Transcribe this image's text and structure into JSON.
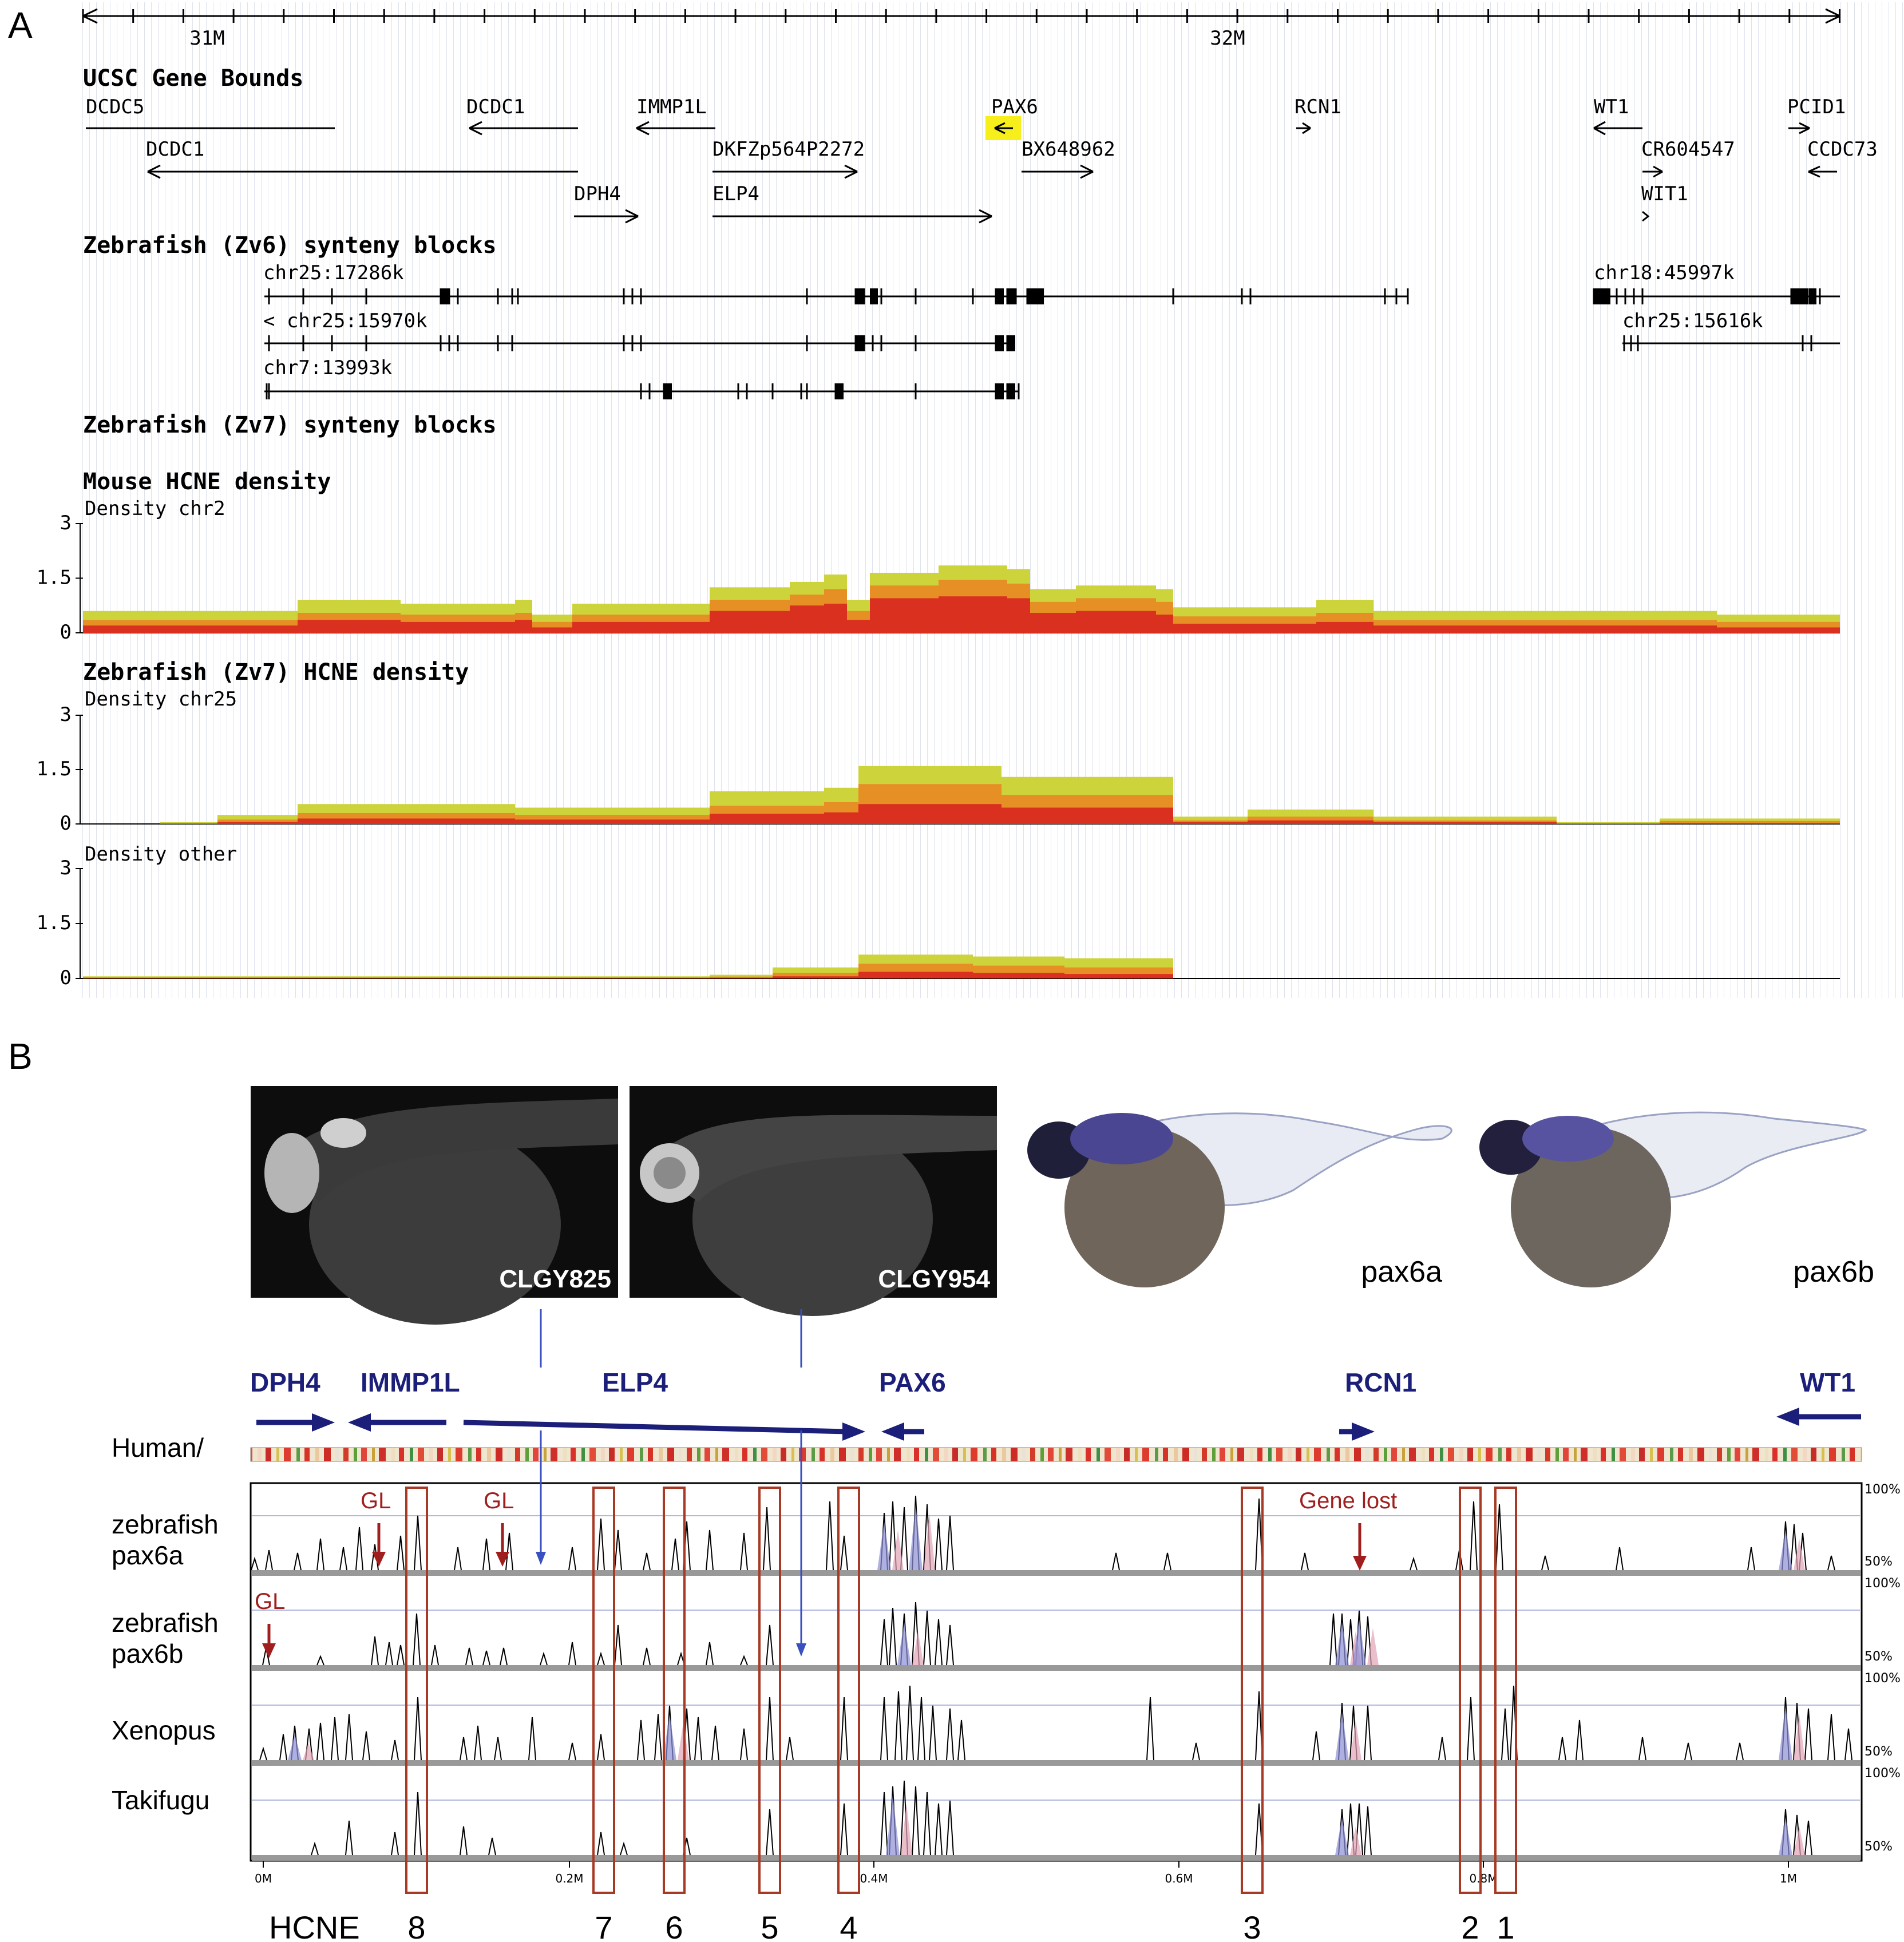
{
  "panel_a": {
    "label": "A",
    "ruler": {
      "ticks": [
        "31M",
        "32M"
      ]
    },
    "gene_track": {
      "title": "UCSC Gene Bounds",
      "genes": [
        "DCDC5",
        "DCDC1",
        "DCDC1",
        "IMMP1L",
        "DKFZp564P2272",
        "DPH4",
        "ELP4",
        "PAX6",
        "BX648962",
        "RCN1",
        "WT1",
        "CR604547",
        "WIT1",
        "PCID1",
        "CCDC73"
      ]
    },
    "synteny_zv6": {
      "title": "Zebrafish (Zv6) synteny blocks",
      "blocks": [
        "chr25:17286k",
        "< chr25:15970k",
        "chr7:13993k",
        "chr18:45997k",
        "chr25:15616k"
      ]
    },
    "synteny_zv7": {
      "title": "Zebrafish (Zv7) synteny blocks"
    },
    "density_tracks": [
      {
        "title": "Mouse HCNE density",
        "sublabel": "Density chr2",
        "yticks": [
          "3",
          "1.5",
          "0"
        ]
      },
      {
        "title": "Zebrafish (Zv7) HCNE density",
        "sublabel": "Density chr25",
        "yticks": [
          "3",
          "1.5",
          "0"
        ]
      },
      {
        "title": "",
        "sublabel": "Density other",
        "yticks": [
          "3",
          "1.5",
          "0"
        ]
      }
    ],
    "colors": {
      "yellow": "#cdd33a",
      "orange": "#e58f25",
      "red": "#d9301f",
      "highlight": "#f6ef1b"
    }
  },
  "panel_b": {
    "label": "B",
    "photos": [
      {
        "caption": "CLGY825"
      },
      {
        "caption": "CLGY954"
      },
      {
        "caption": "pax6a"
      },
      {
        "caption": "pax6b"
      }
    ],
    "genes": [
      "DPH4",
      "IMMP1L",
      "ELP4",
      "PAX6",
      "RCN1",
      "WT1"
    ],
    "human_label": "Human/",
    "rows": [
      "zebrafish pax6a",
      "zebrafish pax6b",
      "Xenopus",
      "Takifugu"
    ],
    "row_lines": [
      [
        "zebrafish",
        "pax6a"
      ],
      [
        "zebrafish",
        "pax6b"
      ],
      [
        "Xenopus"
      ],
      [
        "Takifugu"
      ]
    ],
    "pct_labels": [
      "100%",
      "50%"
    ],
    "gl_label": "GL",
    "gene_lost_label": "Gene lost",
    "xaxis_ticks": [
      "0M",
      "0.2M",
      "0.4M",
      "0.6M",
      "0.8M",
      "1M"
    ],
    "hcne_label": "HCNE",
    "hcne_numbers": [
      "8",
      "7",
      "6",
      "5",
      "4",
      "3",
      "2",
      "1"
    ],
    "colors": {
      "gene": "#1b1f7a",
      "box": "#a83a25",
      "arrow": "#a01e1e",
      "line": "#3a4fc0"
    }
  }
}
